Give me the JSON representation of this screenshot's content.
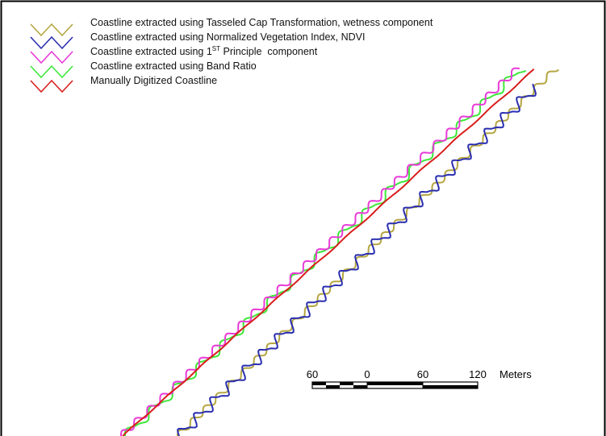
{
  "legend": {
    "items": [
      {
        "id": "tasseled-cap",
        "label": "Coastline extracted using Tasseled Cap Transformation, wetness component",
        "color": "#b5a642"
      },
      {
        "id": "ndvi",
        "label": "Coastline extracted using Normalized Vegetation Index, NDVI",
        "color": "#2b2fb0"
      },
      {
        "id": "pca",
        "label_prefix": "Coastline extracted using 1",
        "label_sup": "ST",
        "label_suffix": " Principle  component",
        "color": "#e83ad8"
      },
      {
        "id": "band-ratio",
        "label": "Coastline extracted using Band Ratio",
        "color": "#3ee83a"
      },
      {
        "id": "manual",
        "label": "Manually Digitized Coastline",
        "color": "#d81e1e"
      }
    ]
  },
  "scale_bar": {
    "labels": [
      "60",
      "0",
      "60",
      "120"
    ],
    "unit": "Meters",
    "values_m": [
      -60,
      0,
      60,
      120
    ]
  }
}
